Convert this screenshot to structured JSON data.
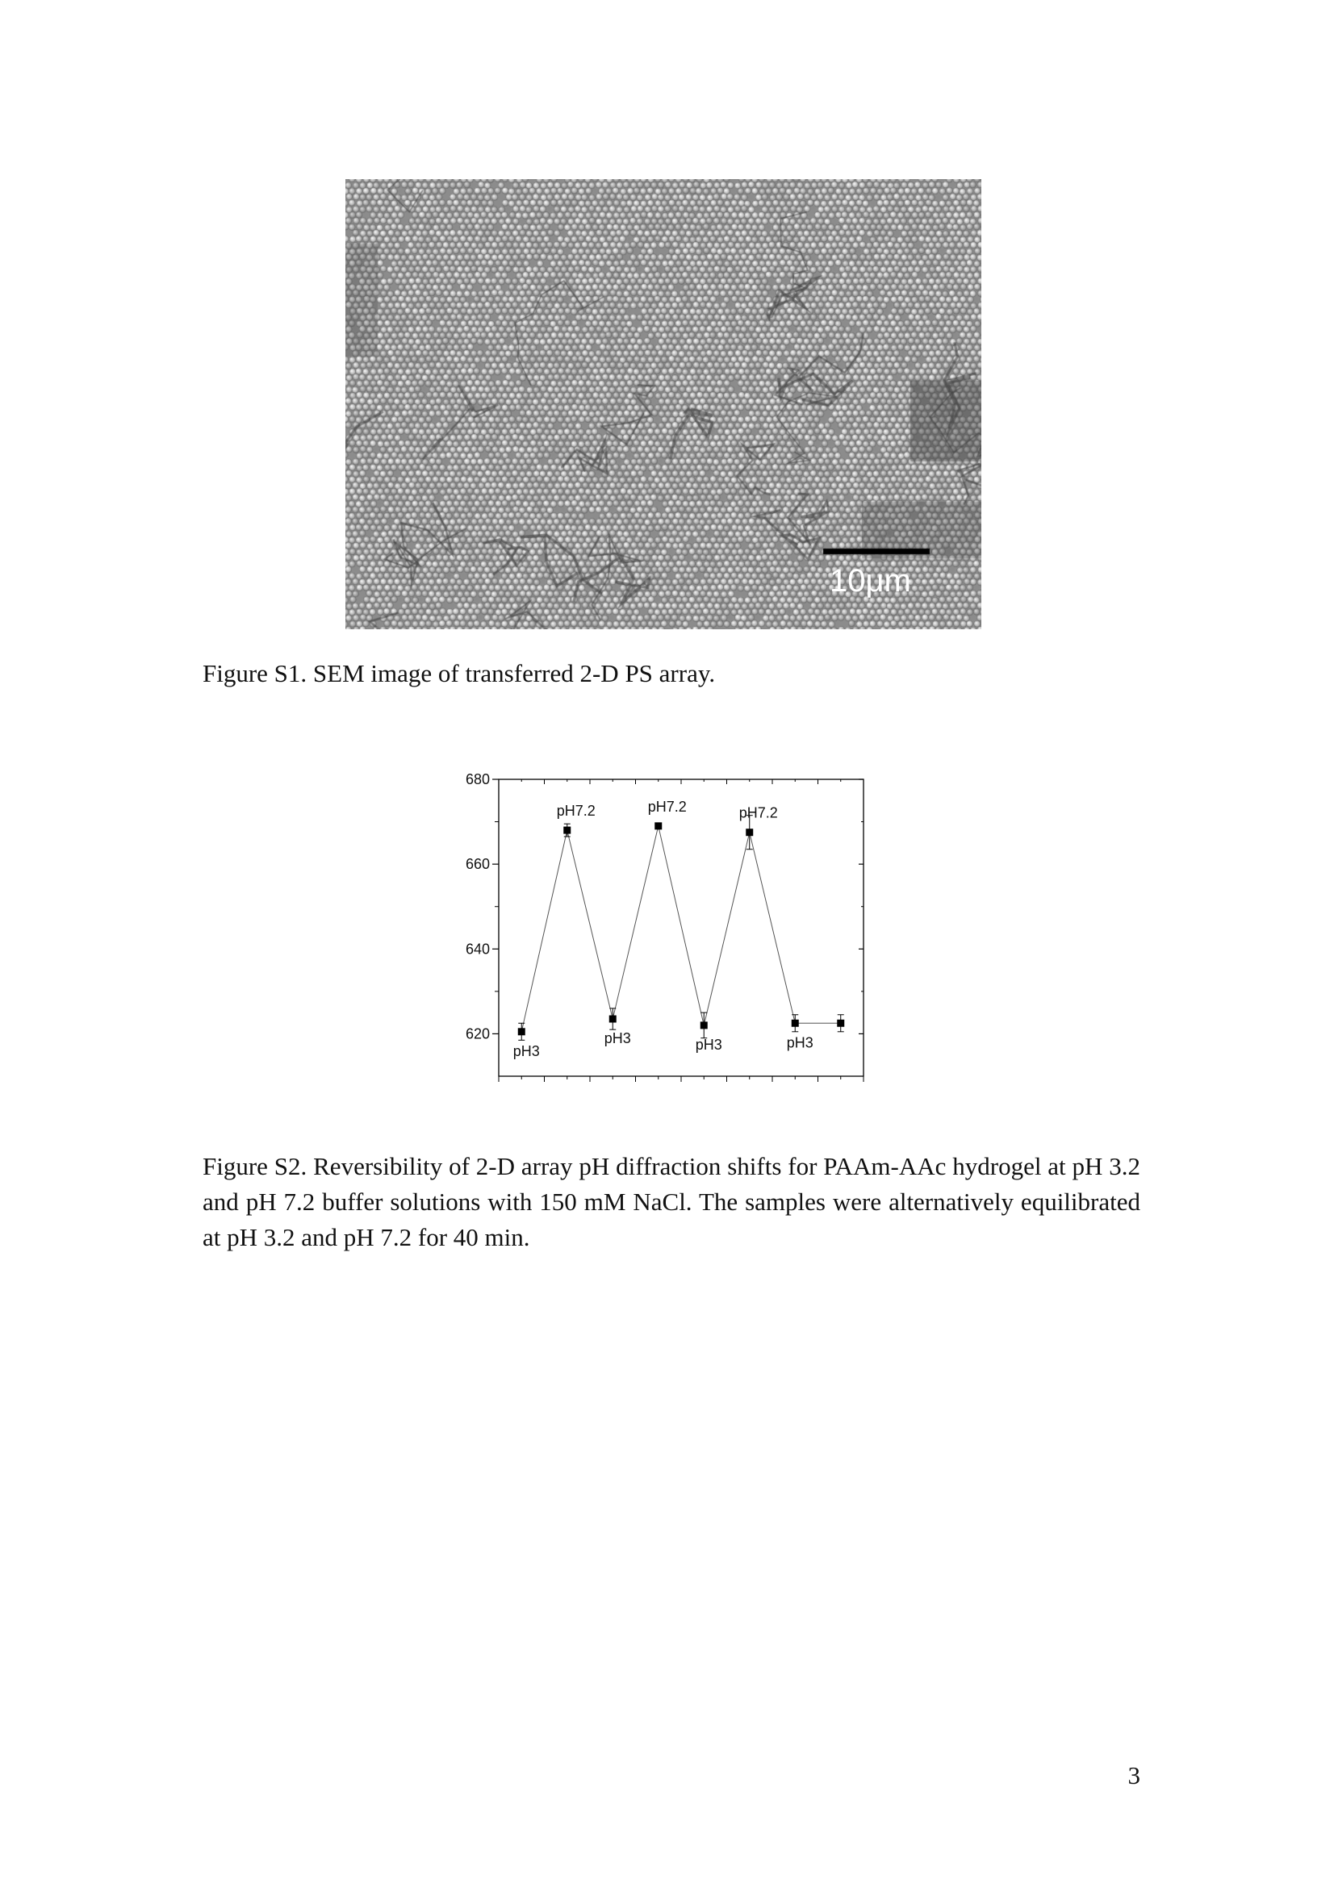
{
  "figure_s1": {
    "scale_bar_label": "10μm",
    "caption": "Figure S1. SEM image of transferred 2-D PS array."
  },
  "chart_data": {
    "type": "scatter",
    "title": "",
    "xlabel": "",
    "ylabel": "",
    "ylim": [
      610,
      680
    ],
    "xlim": [
      0.5,
      8.5
    ],
    "y_ticks": [
      620,
      640,
      660,
      680
    ],
    "grid": false,
    "connected": true,
    "series": [
      {
        "x": [
          1,
          2,
          3,
          4,
          5,
          6,
          7,
          8
        ],
        "values": [
          620.5,
          668,
          623.5,
          669,
          622,
          667.5,
          622.5,
          622.5
        ],
        "errors": [
          2,
          1.5,
          2.5,
          0,
          3,
          4,
          2,
          2
        ]
      }
    ],
    "annotations": [
      "pH3",
      "pH7.2",
      "pH3",
      "pH7.2",
      "pH3",
      "pH7.2",
      "pH3"
    ],
    "colors": {
      "marker": "#000000",
      "line": "#555555",
      "axis": "#000000"
    }
  },
  "figure_s2": {
    "caption": "Figure S2. Reversibility of 2-D array pH diffraction shifts for PAAm-AAc hydrogel at pH 3.2 and pH 7.2 buffer solutions with 150 mM NaCl. The samples were alternatively equilibrated at pH 3.2 and pH 7.2 for 40 min."
  },
  "page_number": "3"
}
